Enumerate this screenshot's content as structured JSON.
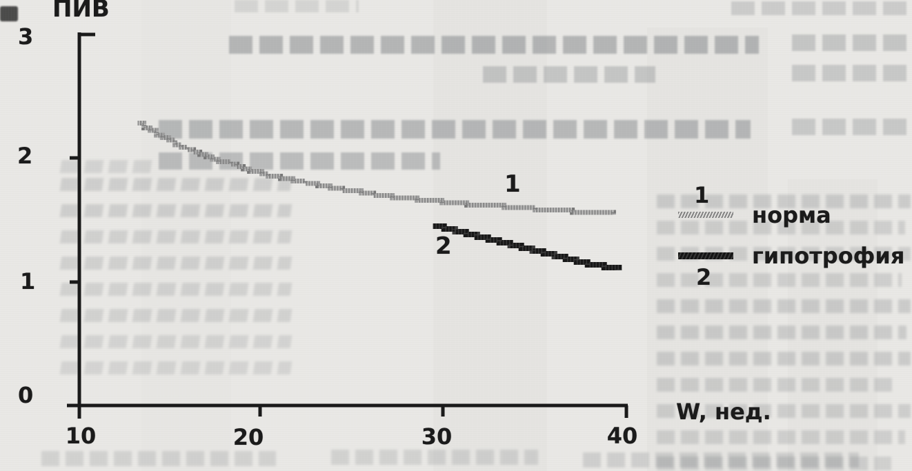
{
  "figure": {
    "y_axis_title": "ПИВ",
    "x_axis_title": "W, нед.",
    "y_tick_labels": [
      "3",
      "2",
      "1",
      "0"
    ],
    "x_tick_labels": [
      "10",
      "20",
      "30",
      "40"
    ],
    "curve_labels": {
      "series1": "1",
      "series2": "2"
    }
  },
  "legend": {
    "items": [
      {
        "number": "1",
        "label": "норма",
        "swatch_color": "#8f8f8f",
        "swatch_style": "hatched"
      },
      {
        "number": "2",
        "label": "гипотрофия",
        "swatch_color": "#1c1c1c",
        "swatch_style": "solid"
      }
    ]
  },
  "colors": {
    "paper": "#e9e8e5",
    "axis": "#1a1a1a",
    "text": "#1b1b1b",
    "series1": "#949494",
    "series2": "#1c1c1c"
  },
  "chart_data": {
    "type": "line",
    "title": "",
    "xlabel": "W, нед.",
    "ylabel": "ПИВ",
    "xlim": [
      10,
      40
    ],
    "ylim": [
      0,
      3
    ],
    "x_ticks": [
      10,
      20,
      30,
      40
    ],
    "y_ticks": [
      0,
      1,
      2,
      3
    ],
    "grid": false,
    "legend_position": "right-of-plot",
    "series": [
      {
        "name": "норма",
        "curve_label": "1",
        "color": "#949494",
        "line_style": "hatched",
        "points": [
          [
            13.2,
            2.28
          ],
          [
            15,
            2.13
          ],
          [
            17,
            2.01
          ],
          [
            19,
            1.91
          ],
          [
            21,
            1.84
          ],
          [
            23,
            1.78
          ],
          [
            25,
            1.73
          ],
          [
            27,
            1.69
          ],
          [
            29,
            1.66
          ],
          [
            31,
            1.63
          ],
          [
            33,
            1.61
          ],
          [
            35,
            1.59
          ],
          [
            37,
            1.57
          ],
          [
            39.3,
            1.55
          ]
        ]
      },
      {
        "name": "гипотрофия",
        "curve_label": "2",
        "color": "#1c1c1c",
        "line_style": "solid",
        "points": [
          [
            29.4,
            1.46
          ],
          [
            31,
            1.4
          ],
          [
            33,
            1.32
          ],
          [
            35,
            1.25
          ],
          [
            37,
            1.17
          ],
          [
            39.6,
            1.1
          ]
        ]
      }
    ]
  }
}
